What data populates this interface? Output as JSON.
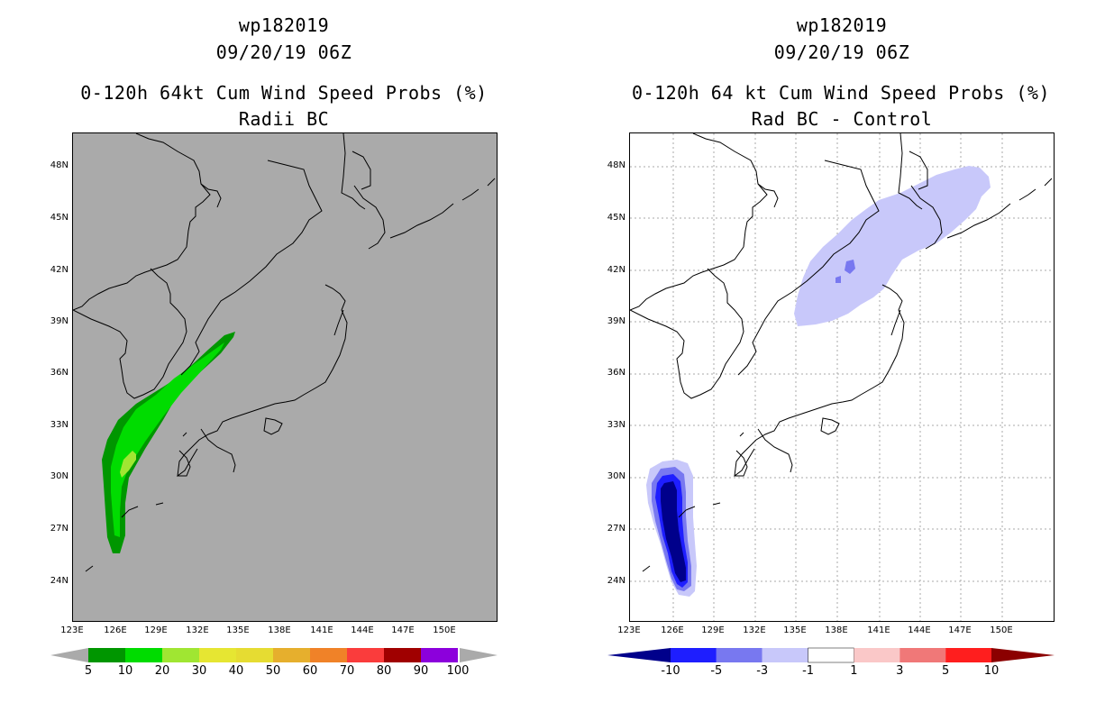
{
  "left": {
    "storm_id": "wp182019",
    "datetime": "09/20/19 06Z",
    "title": "0-120h 64kt Cum Wind Speed Probs (%)",
    "subtitle": "Radii BC",
    "background": "#aaaaaa",
    "lat_labels": [
      "48N",
      "45N",
      "42N",
      "39N",
      "36N",
      "33N",
      "30N",
      "27N",
      "24N"
    ],
    "lon_labels": [
      "123E",
      "126E",
      "129E",
      "132E",
      "135E",
      "138E",
      "141E",
      "144E",
      "147E",
      "150E"
    ],
    "colorbar": {
      "labels": [
        "5",
        "10",
        "20",
        "30",
        "40",
        "50",
        "60",
        "70",
        "80",
        "90",
        "100"
      ],
      "colors": [
        "#009600",
        "#00dc00",
        "#a0e632",
        "#e6e632",
        "#e6dc32",
        "#e6af2d",
        "#f08228",
        "#fa3c3c",
        "#a00000",
        "#8c00dc"
      ]
    }
  },
  "right": {
    "storm_id": "wp182019",
    "datetime": "09/20/19 06Z",
    "title": "0-120h 64 kt Cum Wind Speed Probs (%)",
    "subtitle": "Rad BC - Control",
    "background": "#ffffff",
    "lat_labels": [
      "48N",
      "45N",
      "42N",
      "39N",
      "36N",
      "33N",
      "30N",
      "27N",
      "24N"
    ],
    "lon_labels": [
      "123E",
      "126E",
      "129E",
      "132E",
      "135E",
      "138E",
      "141E",
      "144E",
      "147E",
      "150E"
    ],
    "colorbar": {
      "labels": [
        "-10",
        "-5",
        "-3",
        "-1",
        "1",
        "3",
        "5",
        "10"
      ],
      "colors": [
        "#00008b",
        "#1e1eff",
        "#7878f0",
        "#c8c8fa",
        "#ffffff",
        "#fac8c8",
        "#f07878",
        "#ff1e1e",
        "#8b0000"
      ]
    }
  }
}
